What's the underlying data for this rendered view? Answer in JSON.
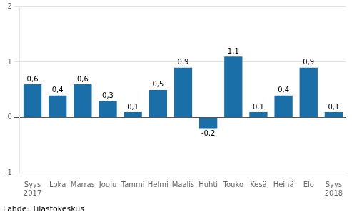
{
  "chart_data": {
    "type": "bar",
    "categories": [
      "Syys\n2017",
      "Loka",
      "Marras",
      "Joulu",
      "Tammi",
      "Helmi",
      "Maalis",
      "Huhti",
      "Touko",
      "Kesä",
      "Heinä",
      "Elo",
      "Syys\n2018"
    ],
    "values": [
      0.6,
      0.4,
      0.6,
      0.3,
      0.1,
      0.5,
      0.9,
      -0.2,
      1.1,
      0.1,
      0.4,
      0.9,
      0.1
    ],
    "value_labels": [
      "0,6",
      "0,4",
      "0,6",
      "0,3",
      "0,1",
      "0,5",
      "0,9",
      "-0,2",
      "1,1",
      "0,1",
      "0,4",
      "0,9",
      "0,1"
    ],
    "color": "#1a6fa8",
    "ylim": [
      -1,
      2
    ],
    "yticks": [
      -1,
      0,
      1,
      2
    ],
    "grid": true,
    "data_labels": true,
    "annotations": [
      "Lähde: Tilastokeskus"
    ]
  }
}
